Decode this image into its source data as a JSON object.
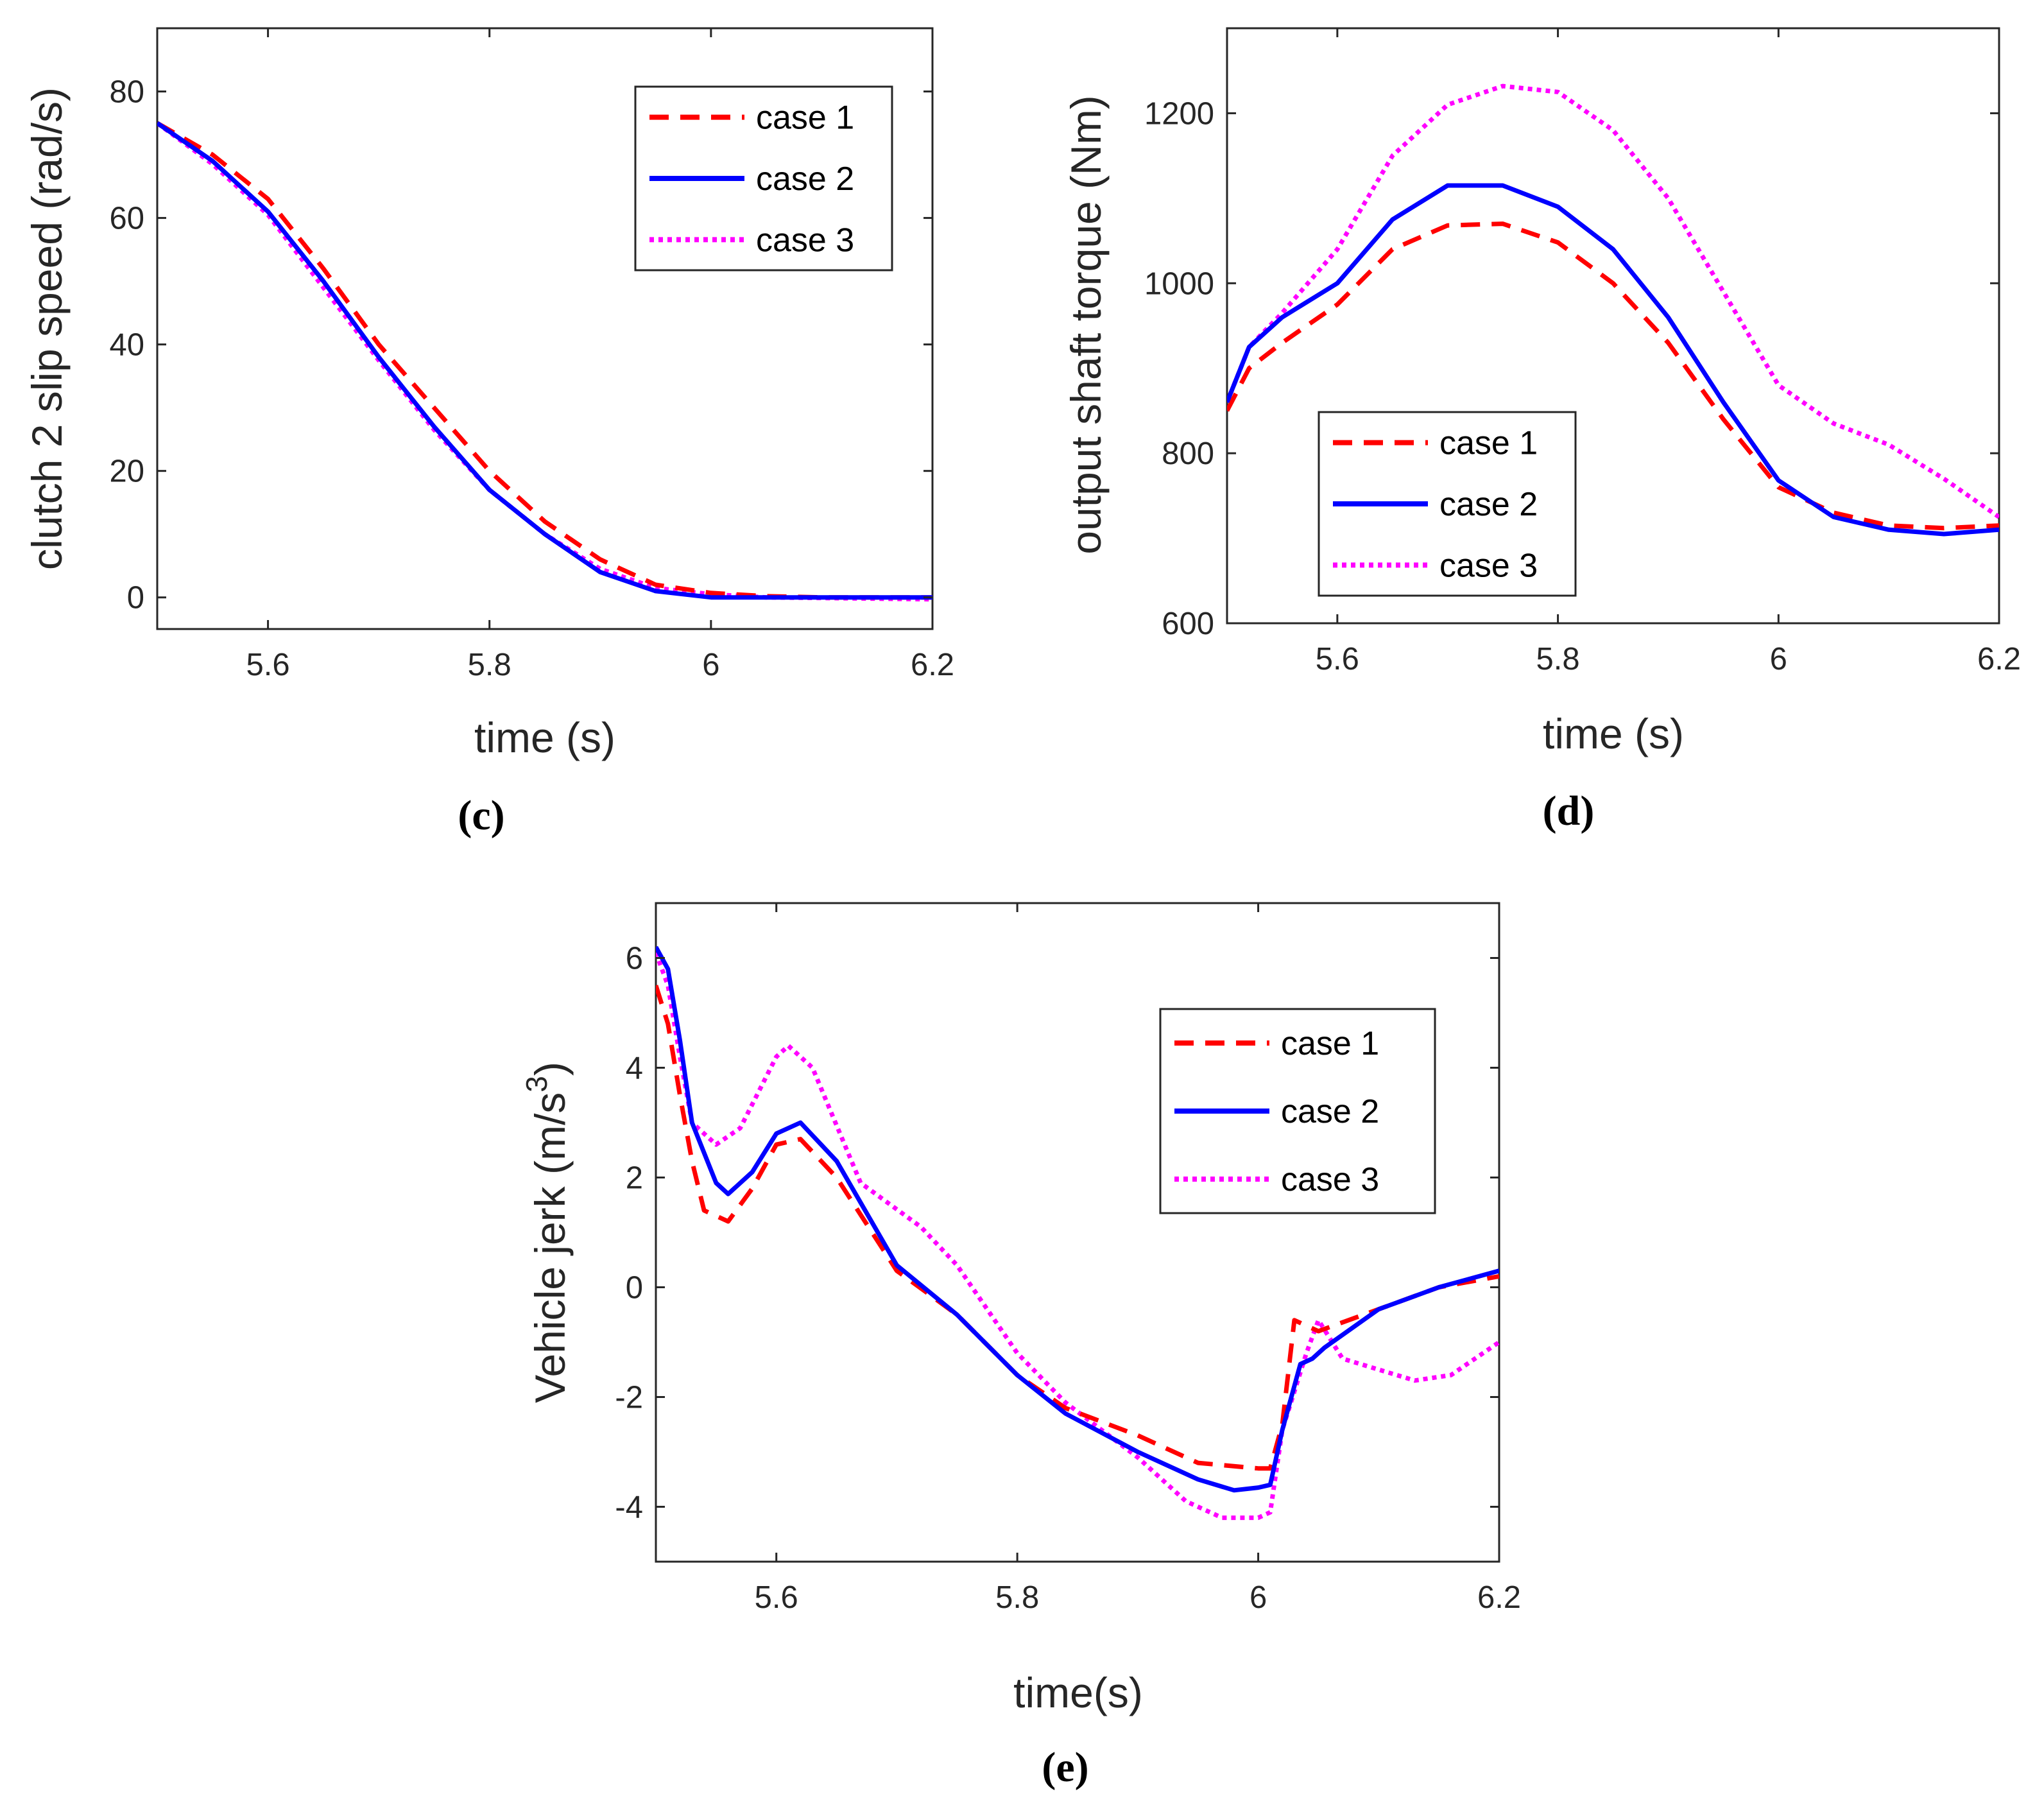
{
  "colors": {
    "case1": "#ff0000",
    "case2": "#0000ff",
    "case3": "#ff00ff",
    "axis": "#262626"
  },
  "chart_data": [
    {
      "id": "c",
      "type": "line",
      "caption_letter": "c",
      "xlabel": "time (s)",
      "ylabel": "clutch 2 slip speed (rad/s)",
      "xlim": [
        5.5,
        6.2
      ],
      "ylim": [
        -5,
        90
      ],
      "xticks": [
        5.6,
        5.8,
        6,
        6.2
      ],
      "xtick_labels": [
        "5.6",
        "5.8",
        "6",
        "6.2"
      ],
      "yticks": [
        0,
        20,
        40,
        60,
        80
      ],
      "ytick_labels": [
        "0",
        "20",
        "40",
        "60",
        "80"
      ],
      "legend_location": "top-right",
      "series": [
        {
          "name": "case 1",
          "style": "dashed",
          "color": "#ff0000",
          "points": [
            [
              5.5,
              75
            ],
            [
              5.55,
              70
            ],
            [
              5.6,
              63
            ],
            [
              5.65,
              52
            ],
            [
              5.7,
              40
            ],
            [
              5.75,
              30
            ],
            [
              5.8,
              20
            ],
            [
              5.85,
              12
            ],
            [
              5.9,
              6
            ],
            [
              5.95,
              2
            ],
            [
              6.0,
              0.7
            ],
            [
              6.05,
              0.2
            ],
            [
              6.1,
              0
            ],
            [
              6.2,
              0
            ]
          ]
        },
        {
          "name": "case 2",
          "style": "solid",
          "color": "#0000ff",
          "points": [
            [
              5.5,
              75
            ],
            [
              5.55,
              69
            ],
            [
              5.6,
              61
            ],
            [
              5.65,
              50
            ],
            [
              5.7,
              38
            ],
            [
              5.75,
              27
            ],
            [
              5.8,
              17
            ],
            [
              5.85,
              10
            ],
            [
              5.9,
              4
            ],
            [
              5.95,
              1
            ],
            [
              6.0,
              0
            ],
            [
              6.2,
              0
            ]
          ]
        },
        {
          "name": "case 3",
          "style": "dotted",
          "color": "#ff00ff",
          "points": [
            [
              5.5,
              75
            ],
            [
              5.55,
              68.5
            ],
            [
              5.6,
              60.5
            ],
            [
              5.65,
              49
            ],
            [
              5.7,
              37.5
            ],
            [
              5.75,
              26.5
            ],
            [
              5.8,
              17
            ],
            [
              5.85,
              10
            ],
            [
              5.9,
              4.5
            ],
            [
              5.95,
              1.5
            ],
            [
              6.0,
              0.5
            ],
            [
              6.05,
              0
            ],
            [
              6.2,
              -0.3
            ]
          ]
        }
      ]
    },
    {
      "id": "d",
      "type": "line",
      "caption_letter": "d",
      "xlabel": "time (s)",
      "ylabel": "output shaft torque (Nm)",
      "xlim": [
        5.5,
        6.2
      ],
      "ylim": [
        600,
        1300
      ],
      "xticks": [
        5.6,
        5.8,
        6,
        6.2
      ],
      "xtick_labels": [
        "5.6",
        "5.8",
        "6",
        "6.2"
      ],
      "yticks": [
        600,
        800,
        1000,
        1200
      ],
      "ytick_labels": [
        "600",
        "800",
        "1000",
        "1200"
      ],
      "legend_location": "bottom-left",
      "series": [
        {
          "name": "case 1",
          "style": "dashed",
          "color": "#ff0000",
          "points": [
            [
              5.5,
              850
            ],
            [
              5.52,
              900
            ],
            [
              5.55,
              930
            ],
            [
              5.6,
              975
            ],
            [
              5.65,
              1040
            ],
            [
              5.7,
              1068
            ],
            [
              5.75,
              1070
            ],
            [
              5.8,
              1048
            ],
            [
              5.85,
              1000
            ],
            [
              5.9,
              930
            ],
            [
              5.95,
              840
            ],
            [
              6.0,
              760
            ],
            [
              6.05,
              730
            ],
            [
              6.1,
              715
            ],
            [
              6.15,
              712
            ],
            [
              6.2,
              715
            ]
          ]
        },
        {
          "name": "case 2",
          "style": "solid",
          "color": "#0000ff",
          "points": [
            [
              5.5,
              860
            ],
            [
              5.52,
              925
            ],
            [
              5.55,
              960
            ],
            [
              5.6,
              1000
            ],
            [
              5.65,
              1075
            ],
            [
              5.7,
              1115
            ],
            [
              5.75,
              1115
            ],
            [
              5.8,
              1090
            ],
            [
              5.85,
              1040
            ],
            [
              5.9,
              960
            ],
            [
              5.95,
              860
            ],
            [
              6.0,
              768
            ],
            [
              6.05,
              725
            ],
            [
              6.1,
              710
            ],
            [
              6.15,
              705
            ],
            [
              6.2,
              710
            ]
          ]
        },
        {
          "name": "case 3",
          "style": "dotted",
          "color": "#ff00ff",
          "points": [
            [
              5.5,
              860
            ],
            [
              5.52,
              925
            ],
            [
              5.55,
              965
            ],
            [
              5.6,
              1040
            ],
            [
              5.65,
              1150
            ],
            [
              5.7,
              1210
            ],
            [
              5.75,
              1232
            ],
            [
              5.8,
              1225
            ],
            [
              5.85,
              1180
            ],
            [
              5.9,
              1100
            ],
            [
              5.95,
              990
            ],
            [
              6.0,
              880
            ],
            [
              6.05,
              835
            ],
            [
              6.1,
              810
            ],
            [
              6.15,
              770
            ],
            [
              6.2,
              725
            ]
          ]
        }
      ]
    },
    {
      "id": "e",
      "type": "line",
      "caption_letter": "e",
      "xlabel": "time(s)",
      "ylabel": "Vehicle jerk  (m/s",
      "ylabel_sup": "3",
      "ylabel_close": ")",
      "xlim": [
        5.5,
        6.2
      ],
      "ylim": [
        -5,
        7
      ],
      "xticks": [
        5.6,
        5.8,
        6,
        6.2
      ],
      "xtick_labels": [
        "5.6",
        "5.8",
        "6",
        "6.2"
      ],
      "yticks": [
        -4,
        -2,
        0,
        2,
        4,
        6
      ],
      "ytick_labels": [
        "-4",
        "-2",
        "0",
        "2",
        "4",
        "6"
      ],
      "legend_location": "top-right",
      "series": [
        {
          "name": "case 1",
          "style": "dashed",
          "color": "#ff0000",
          "points": [
            [
              5.5,
              5.5
            ],
            [
              5.51,
              4.8
            ],
            [
              5.52,
              3.5
            ],
            [
              5.53,
              2.3
            ],
            [
              5.54,
              1.4
            ],
            [
              5.56,
              1.2
            ],
            [
              5.58,
              1.8
            ],
            [
              5.6,
              2.6
            ],
            [
              5.62,
              2.7
            ],
            [
              5.65,
              2.0
            ],
            [
              5.7,
              0.3
            ],
            [
              5.75,
              -0.5
            ],
            [
              5.8,
              -1.6
            ],
            [
              5.84,
              -2.2
            ],
            [
              5.9,
              -2.7
            ],
            [
              5.95,
              -3.2
            ],
            [
              6.0,
              -3.3
            ],
            [
              6.01,
              -3.3
            ],
            [
              6.02,
              -2.5
            ],
            [
              6.03,
              -0.6
            ],
            [
              6.05,
              -0.8
            ],
            [
              6.1,
              -0.4
            ],
            [
              6.15,
              0
            ],
            [
              6.2,
              0.2
            ]
          ]
        },
        {
          "name": "case 2",
          "style": "solid",
          "color": "#0000ff",
          "points": [
            [
              5.5,
              6.2
            ],
            [
              5.51,
              5.8
            ],
            [
              5.52,
              4.5
            ],
            [
              5.53,
              3.0
            ],
            [
              5.55,
              1.9
            ],
            [
              5.56,
              1.7
            ],
            [
              5.58,
              2.1
            ],
            [
              5.6,
              2.8
            ],
            [
              5.62,
              3.0
            ],
            [
              5.65,
              2.3
            ],
            [
              5.7,
              0.4
            ],
            [
              5.75,
              -0.5
            ],
            [
              5.8,
              -1.6
            ],
            [
              5.84,
              -2.3
            ],
            [
              5.9,
              -3.0
            ],
            [
              5.95,
              -3.5
            ],
            [
              5.98,
              -3.7
            ],
            [
              6.0,
              -3.65
            ],
            [
              6.01,
              -3.6
            ],
            [
              6.02,
              -2.6
            ],
            [
              6.035,
              -1.4
            ],
            [
              6.045,
              -1.3
            ],
            [
              6.055,
              -1.1
            ],
            [
              6.1,
              -0.4
            ],
            [
              6.15,
              0
            ],
            [
              6.2,
              0.3
            ]
          ]
        },
        {
          "name": "case 3",
          "style": "dotted",
          "color": "#ff00ff",
          "points": [
            [
              5.5,
              6.1
            ],
            [
              5.51,
              5.5
            ],
            [
              5.52,
              4.2
            ],
            [
              5.53,
              3.0
            ],
            [
              5.55,
              2.6
            ],
            [
              5.57,
              2.9
            ],
            [
              5.6,
              4.2
            ],
            [
              5.61,
              4.4
            ],
            [
              5.63,
              4.0
            ],
            [
              5.67,
              1.9
            ],
            [
              5.72,
              1.1
            ],
            [
              5.75,
              0.4
            ],
            [
              5.8,
              -1.2
            ],
            [
              5.84,
              -2.1
            ],
            [
              5.9,
              -3.1
            ],
            [
              5.94,
              -3.9
            ],
            [
              5.97,
              -4.2
            ],
            [
              6.0,
              -4.2
            ],
            [
              6.01,
              -4.1
            ],
            [
              6.02,
              -2.6
            ],
            [
              6.04,
              -1.2
            ],
            [
              6.05,
              -0.6
            ],
            [
              6.07,
              -1.3
            ],
            [
              6.1,
              -1.5
            ],
            [
              6.13,
              -1.7
            ],
            [
              6.16,
              -1.6
            ],
            [
              6.2,
              -1.0
            ]
          ]
        }
      ]
    }
  ]
}
